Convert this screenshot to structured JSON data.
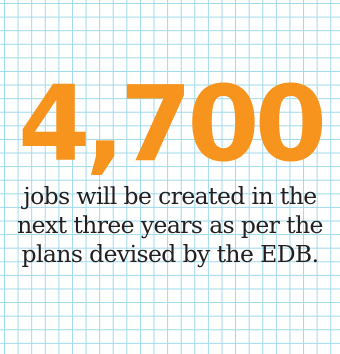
{
  "figure": "4,700",
  "caption_lines": [
    "jobs will be created in the",
    "next three years as per the",
    "plans devised by the EDB."
  ],
  "colors": {
    "figure": "#f7941e",
    "text": "#231f20",
    "grid_line": "#9fd9ea",
    "background": "#ffffff"
  }
}
